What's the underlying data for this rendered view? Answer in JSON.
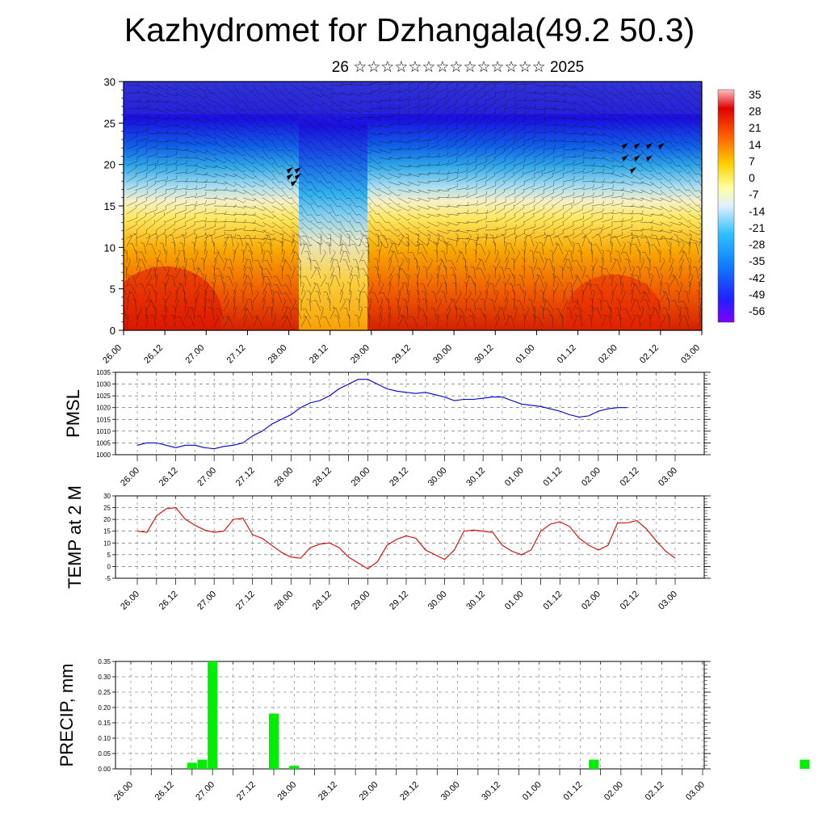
{
  "title": "Kazhydromet for Dzhangala(49.2 50.3)",
  "subtitle": "26 ☆☆☆☆☆☆☆☆☆☆☆☆☆☆ 2025",
  "time_ticks": [
    "26.00",
    "26.12",
    "27.00",
    "27.12",
    "28.00",
    "28.12",
    "29.00",
    "29.12",
    "30.00",
    "30.12",
    "01.00",
    "01.12",
    "02.00",
    "02.12",
    "03.00"
  ],
  "colors": {
    "pmsl_line": "#0000cc",
    "temp_line": "#dd0000",
    "precip_bar": "#00ee00"
  },
  "chart_data": [
    {
      "type": "heatmap",
      "description_label": "",
      "ylim": [
        0,
        30
      ],
      "y_ticks": [
        "0",
        "5",
        "10",
        "15",
        "20",
        "25",
        "30"
      ],
      "colorbar_labels": [
        "35",
        "28",
        "21",
        "14",
        "7",
        "0",
        "-7",
        "-14",
        "-21",
        "-28",
        "-35",
        "-42",
        "-49",
        "-56"
      ],
      "colorbar_range": [
        -63,
        42
      ],
      "x_ticks": [
        "26.00",
        "26.12",
        "27.00",
        "27.12",
        "28.00",
        "28.12",
        "29.00",
        "29.12",
        "30.00",
        "30.12",
        "01.00",
        "01.12",
        "02.00",
        "02.12",
        "03.00"
      ],
      "overlay": "wind barbs"
    },
    {
      "type": "line",
      "ylabel": "PMSL",
      "ylim": [
        1000,
        1035
      ],
      "y_ticks": [
        "1000",
        "1005",
        "1010",
        "1015",
        "1020",
        "1025",
        "1030",
        "1035"
      ],
      "x": [
        0,
        3,
        6,
        9,
        12,
        15,
        18,
        21,
        24,
        27,
        30,
        33,
        36,
        39,
        42,
        45,
        48,
        51,
        54,
        57,
        60,
        63,
        66,
        69,
        72,
        75,
        78,
        81,
        84,
        87,
        90,
        93,
        96,
        99,
        102,
        105,
        108,
        111,
        114,
        117,
        120,
        123,
        126,
        129,
        132,
        135,
        138,
        141,
        144,
        147,
        150,
        153,
        156,
        159,
        162,
        165,
        168
      ],
      "values": [
        1004,
        1005,
        1005,
        1004,
        1003,
        1004,
        1004,
        1003,
        1002.5,
        1003.5,
        1004,
        1005,
        1008,
        1010,
        1013,
        1015,
        1017,
        1020,
        1022,
        1023,
        1025,
        1028,
        1030,
        1032,
        1032,
        1030,
        1028,
        1027,
        1026.5,
        1026,
        1026.5,
        1025.5,
        1024.5,
        1023,
        1023.5,
        1023.5,
        1024,
        1024.5,
        1024.5,
        1023,
        1021.5,
        1021,
        1020.5,
        1019.5,
        1018.5,
        1017,
        1016,
        1016.5,
        1018.5,
        1019.5,
        1020,
        1020,
        null,
        null,
        null,
        null,
        null
      ]
    },
    {
      "type": "line",
      "ylabel": "TEMP at 2 M",
      "ylim": [
        -5,
        30
      ],
      "y_ticks": [
        "-5",
        "0",
        "5",
        "10",
        "15",
        "20",
        "25",
        "30"
      ],
      "x": [
        0,
        3,
        6,
        9,
        12,
        15,
        18,
        21,
        24,
        27,
        30,
        33,
        36,
        39,
        42,
        45,
        48,
        51,
        54,
        57,
        60,
        63,
        66,
        69,
        72,
        75,
        78,
        81,
        84,
        87,
        90,
        93,
        96,
        99,
        102,
        105,
        108,
        111,
        114,
        117,
        120,
        123,
        126,
        129,
        132,
        135,
        138,
        141,
        144,
        147,
        150,
        153,
        156,
        159,
        162,
        165,
        168
      ],
      "values": [
        15,
        14.5,
        21.5,
        24.5,
        25,
        20,
        17.5,
        15.5,
        14.5,
        15,
        20,
        20.5,
        13.5,
        12,
        9,
        6,
        4,
        3.5,
        8,
        9.5,
        10,
        8,
        4,
        1.5,
        -1,
        2,
        9,
        11.5,
        13,
        12,
        7,
        5,
        3,
        7,
        15,
        15.5,
        15,
        14.5,
        9,
        6.5,
        5,
        7,
        15,
        18,
        19,
        17,
        12,
        9,
        7,
        9,
        18.5,
        18.5,
        19.5,
        16,
        11,
        6.5,
        3.5
      ]
    },
    {
      "type": "bar",
      "ylabel": "PRECIP, mm",
      "ylim": [
        0,
        0.35
      ],
      "y_ticks": [
        "0.00",
        "0.05",
        "0.10",
        "0.15",
        "0.20",
        "0.25",
        "0.30",
        "0.35"
      ],
      "x": [
        18,
        21,
        24,
        42,
        48,
        136,
        198
      ],
      "values": [
        0.02,
        0.03,
        0.35,
        0.18,
        0.01,
        0.03,
        0.03
      ]
    }
  ]
}
